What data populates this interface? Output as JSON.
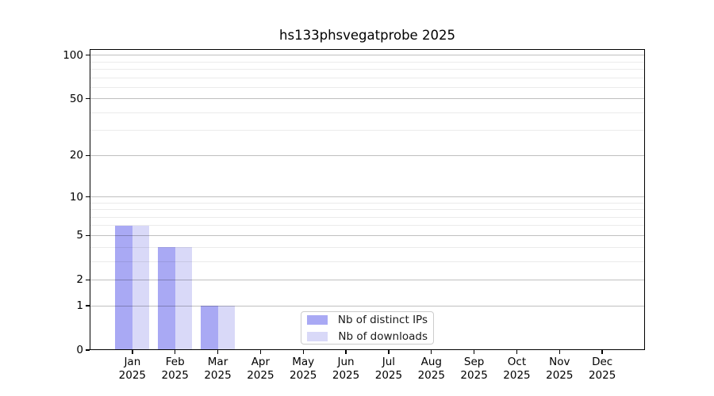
{
  "chart_data": {
    "type": "bar",
    "title": "hs133phsvegatprobe 2025",
    "categories": [
      "Jan 2025",
      "Feb 2025",
      "Mar 2025",
      "Apr 2025",
      "May 2025",
      "Jun 2025",
      "Jul 2025",
      "Aug 2025",
      "Sep 2025",
      "Oct 2025",
      "Nov 2025",
      "Dec 2025"
    ],
    "series": [
      {
        "name": "Nb of distinct IPs",
        "color": "#a9a9f4",
        "values": [
          6,
          4,
          1,
          0,
          0,
          0,
          0,
          0,
          0,
          0,
          0,
          0
        ]
      },
      {
        "name": "Nb of downloads",
        "color": "#d9d9f8",
        "values": [
          6,
          4,
          1,
          0,
          0,
          0,
          0,
          0,
          0,
          0,
          0,
          0
        ]
      }
    ],
    "xlabel": "",
    "ylabel": "",
    "yscale": "log1p",
    "ylim": [
      0,
      110
    ],
    "y_major_ticks": [
      0,
      1,
      2,
      5,
      10,
      20,
      50,
      100
    ],
    "y_minor_gridlines": [
      3,
      4,
      6,
      7,
      8,
      9,
      30,
      40,
      60,
      70,
      80,
      90
    ],
    "grid": true,
    "legend_position": "inside-bottom-center"
  }
}
